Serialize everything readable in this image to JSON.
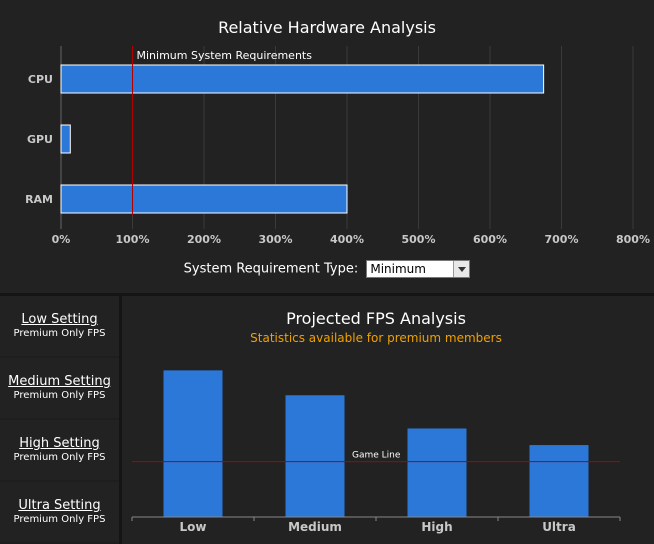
{
  "hardware": {
    "title": "Relative Hardware Analysis",
    "min_req_label": "Minimum System Requirements",
    "requirement_type_label": "System Requirement Type:",
    "requirement_type_value": "Minimum",
    "chart_data": {
      "type": "bar",
      "orientation": "horizontal",
      "title": "Relative Hardware Analysis",
      "categories": [
        "CPU",
        "GPU",
        "RAM"
      ],
      "values": [
        675,
        13,
        400
      ],
      "xlim": [
        0,
        800
      ],
      "xticks": [
        "0%",
        "100%",
        "200%",
        "300%",
        "400%",
        "500%",
        "600%",
        "700%",
        "800%"
      ],
      "reference_line": {
        "value": 100,
        "label": "Minimum System Requirements"
      },
      "colors": {
        "bar": "#2b78d8",
        "reference": "#b00000",
        "grid": "#3a3a3a"
      }
    }
  },
  "settings": [
    {
      "name": "Low Setting",
      "sub": "Premium Only FPS"
    },
    {
      "name": "Medium Setting",
      "sub": "Premium Only FPS"
    },
    {
      "name": "High Setting",
      "sub": "Premium Only FPS"
    },
    {
      "name": "Ultra Setting",
      "sub": "Premium Only FPS"
    }
  ],
  "fps": {
    "title": "Projected FPS Analysis",
    "subtitle": "Statistics available for premium members",
    "chart_data": {
      "type": "bar",
      "title": "Projected FPS Analysis",
      "categories": [
        "Low",
        "Medium",
        "High",
        "Ultra"
      ],
      "values": [
        2.65,
        2.2,
        1.6,
        1.3
      ],
      "ylim": [
        0,
        3.0
      ],
      "reference_line": {
        "value": 1.0,
        "label": "Game Line"
      },
      "colors": {
        "bar": "#2b78d8",
        "reference": "#b00000",
        "axis": "#888888"
      }
    }
  }
}
